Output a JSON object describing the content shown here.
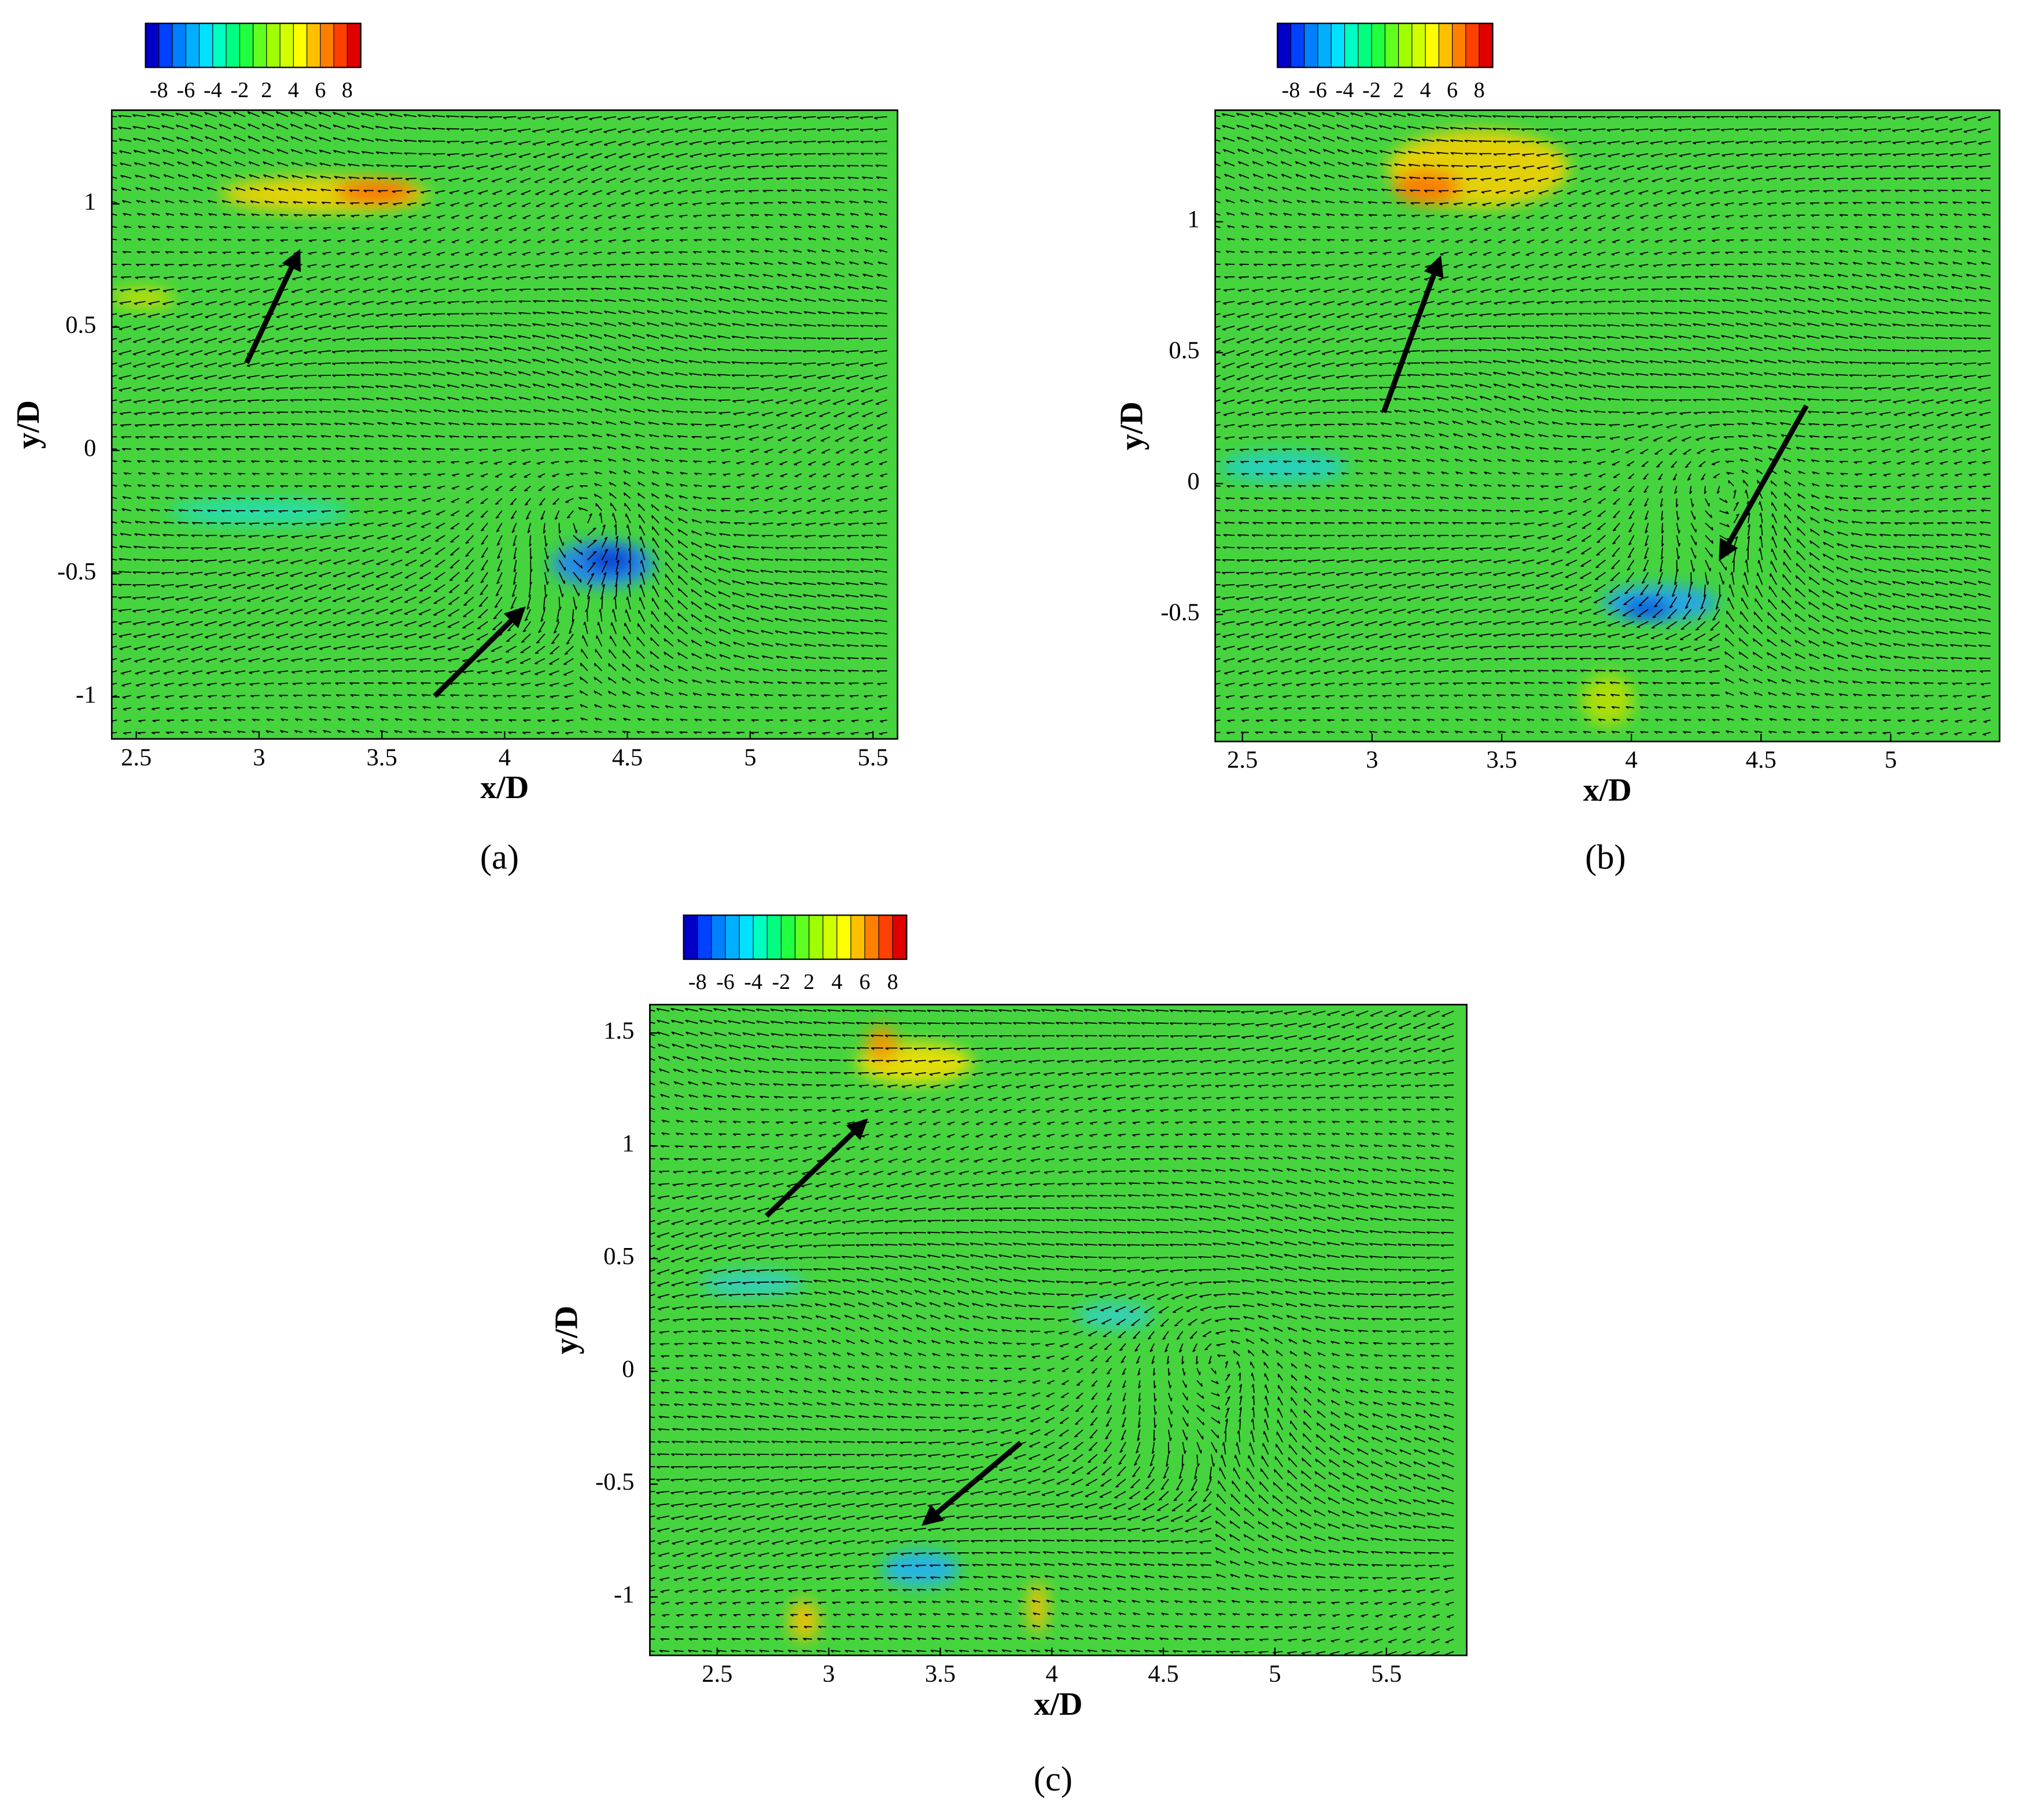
{
  "chart_data": [
    {
      "type": "quiver",
      "caption": "(a)",
      "x_label": "x/D",
      "y_label": "y/D",
      "xlim": [
        2.4,
        5.6
      ],
      "ylim": [
        -1.17,
        1.38
      ],
      "xticks": [
        2.5,
        3,
        3.5,
        4,
        4.5,
        5,
        5.5
      ],
      "yticks": [
        -1,
        -0.5,
        0,
        0.5,
        1
      ],
      "colorbar_labels": [
        "-8",
        "-6",
        "-4",
        "-2",
        "2",
        "4",
        "6",
        "8"
      ],
      "colorbar_colors": [
        "#0000c8",
        "#0040ff",
        "#0080ff",
        "#00b0ff",
        "#00e0ff",
        "#00ffc0",
        "#00ff80",
        "#20ff40",
        "#60ff20",
        "#a0ff00",
        "#d0ff00",
        "#ffff00",
        "#ffc000",
        "#ff8000",
        "#ff4000",
        "#e00000"
      ],
      "background": "#45d43e",
      "vector_color": "#000000"
    },
    {
      "type": "quiver",
      "caption": "(b)",
      "x_label": "x/D",
      "y_label": "y/D",
      "xlim": [
        2.395,
        5.42
      ],
      "ylim": [
        -0.985,
        1.426
      ],
      "xticks": [
        2.5,
        3,
        3.5,
        4,
        4.5,
        5
      ],
      "yticks": [
        -0.5,
        0,
        0.5,
        1
      ],
      "colorbar_labels": [
        "-8",
        "-6",
        "-4",
        "-2",
        "2",
        "4",
        "6",
        "8"
      ],
      "colorbar_colors": [
        "#0000c8",
        "#0040ff",
        "#0080ff",
        "#00b0ff",
        "#00e0ff",
        "#00ffc0",
        "#00ff80",
        "#20ff40",
        "#60ff20",
        "#a0ff00",
        "#d0ff00",
        "#ffff00",
        "#ffc000",
        "#ff8000",
        "#ff4000",
        "#e00000"
      ],
      "background": "#45d43e",
      "vector_color": "#000000"
    },
    {
      "type": "quiver",
      "caption": "(c)",
      "x_label": "x/D",
      "y_label": "y/D",
      "xlim": [
        2.198,
        5.86
      ],
      "ylim": [
        -1.259,
        1.626
      ],
      "xticks": [
        2.5,
        3,
        3.5,
        4,
        4.5,
        5,
        5.5
      ],
      "yticks": [
        -1,
        -0.5,
        0,
        0.5,
        1,
        1.5
      ],
      "colorbar_labels": [
        "-8",
        "-6",
        "-4",
        "-2",
        "2",
        "4",
        "6",
        "8"
      ],
      "colorbar_colors": [
        "#0000c8",
        "#0040ff",
        "#0080ff",
        "#00b0ff",
        "#00e0ff",
        "#00ffc0",
        "#00ff80",
        "#20ff40",
        "#60ff20",
        "#a0ff00",
        "#d0ff00",
        "#ffff00",
        "#ffc000",
        "#ff8000",
        "#ff4000",
        "#e00000"
      ],
      "background": "#45d43e",
      "vector_color": "#000000"
    }
  ]
}
